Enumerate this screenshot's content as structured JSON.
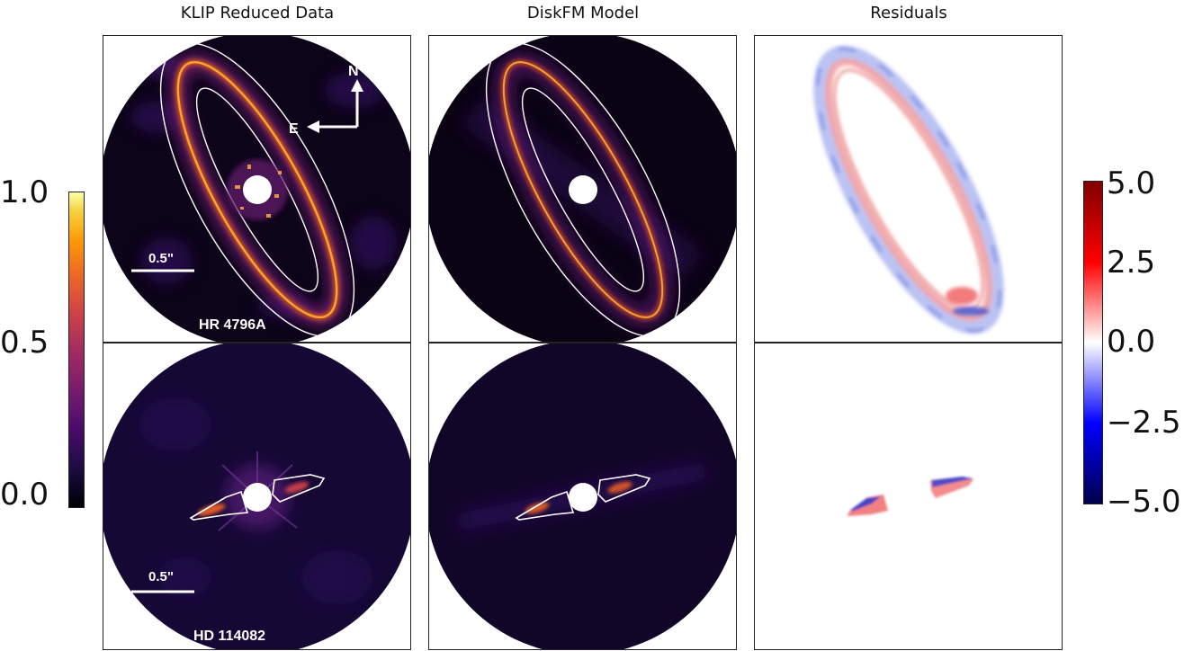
{
  "figure": {
    "columns": [
      {
        "title": "KLIP Reduced Data"
      },
      {
        "title": "DiskFM Model"
      },
      {
        "title": "Residuals"
      }
    ],
    "rows": [
      {
        "target": "HR 4796A",
        "scale_bar": "0.5\""
      },
      {
        "target": "HD 114082",
        "scale_bar": "0.5\""
      }
    ],
    "compass": {
      "north": "N",
      "east": "E"
    },
    "colorbar_left": {
      "colormap": "inferno",
      "ticks": [
        "1.0",
        "0.5",
        "0.0"
      ],
      "range": [
        -0.05,
        1.05
      ]
    },
    "colorbar_right": {
      "colormap": "seismic",
      "ticks": [
        "5.0",
        "2.5",
        "0.0",
        "−2.5",
        "−5.0"
      ],
      "range": [
        -5,
        5
      ]
    }
  }
}
